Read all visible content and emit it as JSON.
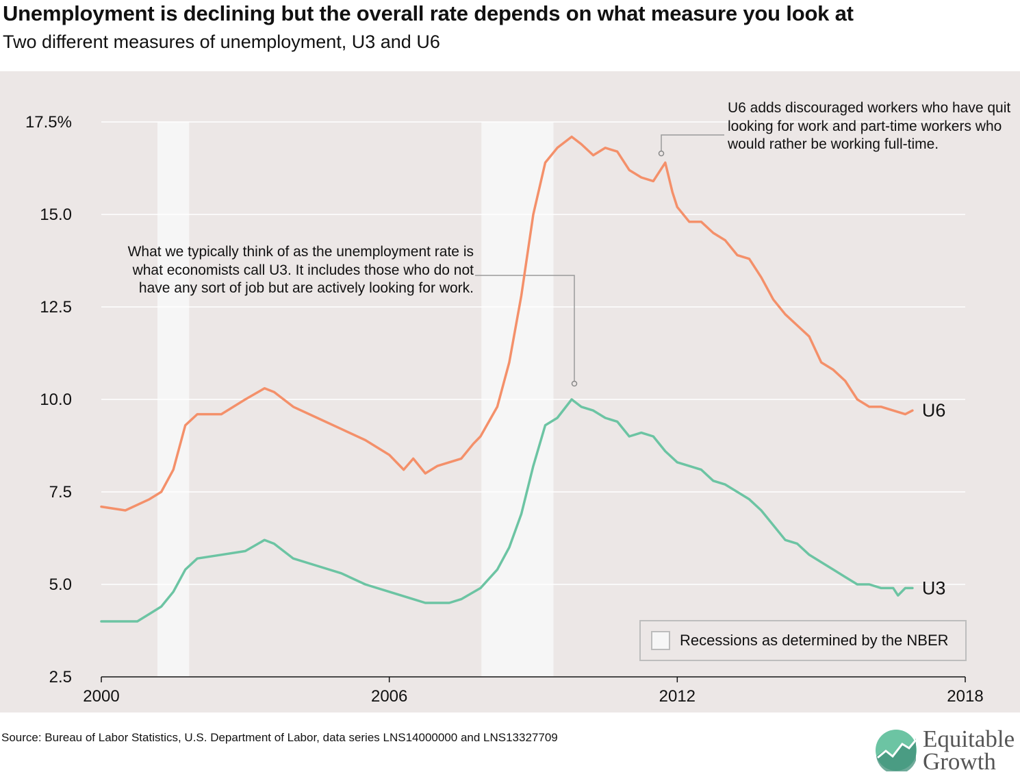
{
  "title": "Unemployment is declining but the overall rate depends on what measure you look at",
  "subtitle": "Two different measures of unemployment, U3 and U6",
  "annotations": {
    "u3_note": "What we typically think of as the unemployment rate is what economists call U3. It includes those who do not have any sort of job but are actively looking for work.",
    "u6_note": "U6 adds discouraged workers who have quit looking for work and part-time workers who would rather be working full-time."
  },
  "legend": {
    "recession_label": "Recessions as determined by the NBER"
  },
  "source": "Source: Bureau of Labor Statistics, U.S. Department of Labor, data series LNS14000000 and LNS13327709",
  "logo": {
    "line1": "Equitable",
    "line2": "Growth"
  },
  "colors": {
    "u6": "#f4906a",
    "u3": "#6cc4a3",
    "background": "#ece7e6",
    "recession": "#f6f6f6"
  },
  "chart_data": {
    "type": "line",
    "x_range": [
      2000,
      2018
    ],
    "y_range": [
      2.5,
      17.5
    ],
    "x_ticks": [
      2000,
      2006,
      2012,
      2018
    ],
    "x_tick_labels": [
      "2000",
      "2006",
      "2012",
      "2018"
    ],
    "y_ticks": [
      2.5,
      5,
      7.5,
      10,
      12.5,
      15,
      17.5
    ],
    "y_tick_labels": [
      "2.5",
      "5.0",
      "7.5",
      "10.0",
      "12.5",
      "15.0",
      "17.5%"
    ],
    "recessions": [
      [
        2001.17,
        2001.83
      ],
      [
        2007.92,
        2009.42
      ]
    ],
    "series": [
      {
        "name": "U6",
        "points": [
          [
            2000.0,
            7.1
          ],
          [
            2000.5,
            7.0
          ],
          [
            2001.0,
            7.3
          ],
          [
            2001.25,
            7.5
          ],
          [
            2001.5,
            8.1
          ],
          [
            2001.75,
            9.3
          ],
          [
            2002.0,
            9.6
          ],
          [
            2002.5,
            9.6
          ],
          [
            2003.0,
            10.0
          ],
          [
            2003.4,
            10.3
          ],
          [
            2003.6,
            10.2
          ],
          [
            2004.0,
            9.8
          ],
          [
            2004.5,
            9.5
          ],
          [
            2005.0,
            9.2
          ],
          [
            2005.5,
            8.9
          ],
          [
            2006.0,
            8.5
          ],
          [
            2006.3,
            8.1
          ],
          [
            2006.5,
            8.4
          ],
          [
            2006.75,
            8.0
          ],
          [
            2007.0,
            8.2
          ],
          [
            2007.5,
            8.4
          ],
          [
            2007.75,
            8.8
          ],
          [
            2007.9,
            9.0
          ],
          [
            2008.25,
            9.8
          ],
          [
            2008.5,
            11.0
          ],
          [
            2008.75,
            12.8
          ],
          [
            2009.0,
            15.0
          ],
          [
            2009.25,
            16.4
          ],
          [
            2009.5,
            16.8
          ],
          [
            2009.8,
            17.1
          ],
          [
            2010.0,
            16.9
          ],
          [
            2010.25,
            16.6
          ],
          [
            2010.5,
            16.8
          ],
          [
            2010.75,
            16.7
          ],
          [
            2011.0,
            16.2
          ],
          [
            2011.25,
            16.0
          ],
          [
            2011.5,
            15.9
          ],
          [
            2011.75,
            16.4
          ],
          [
            2011.9,
            15.6
          ],
          [
            2012.0,
            15.2
          ],
          [
            2012.25,
            14.8
          ],
          [
            2012.5,
            14.8
          ],
          [
            2012.75,
            14.5
          ],
          [
            2013.0,
            14.3
          ],
          [
            2013.25,
            13.9
          ],
          [
            2013.5,
            13.8
          ],
          [
            2013.75,
            13.3
          ],
          [
            2014.0,
            12.7
          ],
          [
            2014.25,
            12.3
          ],
          [
            2014.5,
            12.0
          ],
          [
            2014.75,
            11.7
          ],
          [
            2015.0,
            11.0
          ],
          [
            2015.25,
            10.8
          ],
          [
            2015.5,
            10.5
          ],
          [
            2015.75,
            10.0
          ],
          [
            2016.0,
            9.8
          ],
          [
            2016.25,
            9.8
          ],
          [
            2016.5,
            9.7
          ],
          [
            2016.75,
            9.6
          ],
          [
            2016.9,
            9.7
          ]
        ]
      },
      {
        "name": "U3",
        "points": [
          [
            2000.0,
            4.0
          ],
          [
            2000.3,
            4.0
          ],
          [
            2000.5,
            4.0
          ],
          [
            2000.75,
            4.0
          ],
          [
            2001.0,
            4.2
          ],
          [
            2001.25,
            4.4
          ],
          [
            2001.5,
            4.8
          ],
          [
            2001.75,
            5.4
          ],
          [
            2002.0,
            5.7
          ],
          [
            2002.5,
            5.8
          ],
          [
            2003.0,
            5.9
          ],
          [
            2003.4,
            6.2
          ],
          [
            2003.6,
            6.1
          ],
          [
            2004.0,
            5.7
          ],
          [
            2004.5,
            5.5
          ],
          [
            2005.0,
            5.3
          ],
          [
            2005.5,
            5.0
          ],
          [
            2006.0,
            4.8
          ],
          [
            2006.5,
            4.6
          ],
          [
            2006.75,
            4.5
          ],
          [
            2007.0,
            4.5
          ],
          [
            2007.25,
            4.5
          ],
          [
            2007.5,
            4.6
          ],
          [
            2007.9,
            4.9
          ],
          [
            2008.25,
            5.4
          ],
          [
            2008.5,
            6.0
          ],
          [
            2008.75,
            6.9
          ],
          [
            2009.0,
            8.2
          ],
          [
            2009.25,
            9.3
          ],
          [
            2009.5,
            9.5
          ],
          [
            2009.8,
            10.0
          ],
          [
            2010.0,
            9.8
          ],
          [
            2010.25,
            9.7
          ],
          [
            2010.5,
            9.5
          ],
          [
            2010.75,
            9.4
          ],
          [
            2011.0,
            9.0
          ],
          [
            2011.25,
            9.1
          ],
          [
            2011.5,
            9.0
          ],
          [
            2011.75,
            8.6
          ],
          [
            2012.0,
            8.3
          ],
          [
            2012.25,
            8.2
          ],
          [
            2012.5,
            8.1
          ],
          [
            2012.75,
            7.8
          ],
          [
            2013.0,
            7.7
          ],
          [
            2013.25,
            7.5
          ],
          [
            2013.5,
            7.3
          ],
          [
            2013.75,
            7.0
          ],
          [
            2014.0,
            6.6
          ],
          [
            2014.25,
            6.2
          ],
          [
            2014.5,
            6.1
          ],
          [
            2014.75,
            5.8
          ],
          [
            2015.0,
            5.6
          ],
          [
            2015.25,
            5.4
          ],
          [
            2015.5,
            5.2
          ],
          [
            2015.75,
            5.0
          ],
          [
            2016.0,
            5.0
          ],
          [
            2016.25,
            4.9
          ],
          [
            2016.5,
            4.9
          ],
          [
            2016.6,
            4.7
          ],
          [
            2016.75,
            4.9
          ],
          [
            2016.9,
            4.9
          ]
        ]
      }
    ]
  }
}
